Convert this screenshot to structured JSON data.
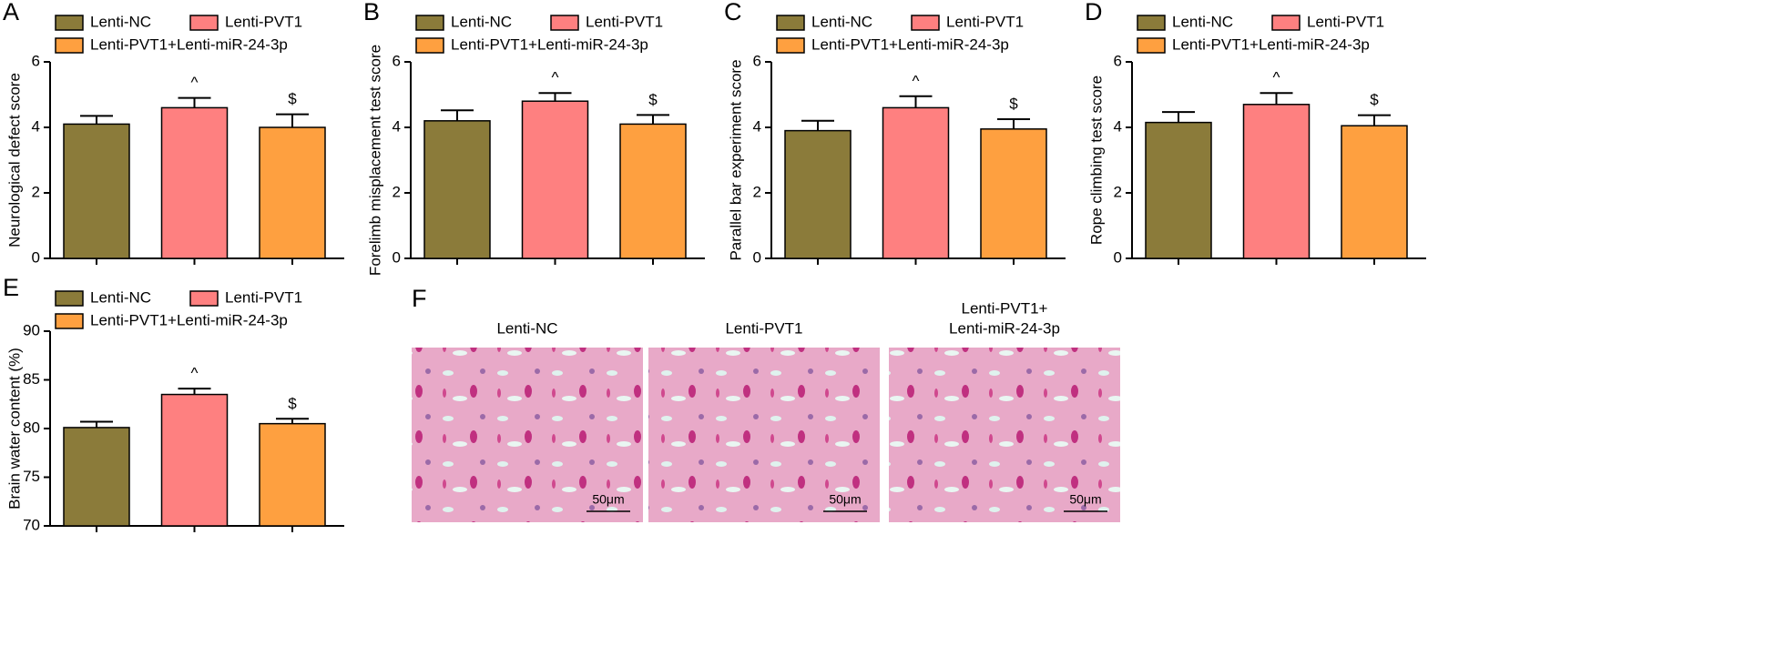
{
  "chart_data": [
    {
      "type": "bar",
      "panel": "A",
      "ylabel": "Neurological defect score",
      "ylim": [
        0,
        6
      ],
      "yticks": [
        0,
        2,
        4,
        6
      ],
      "series": [
        {
          "name": "Lenti-NC",
          "color": "#8b7b3a",
          "values": [
            4.1
          ],
          "errors": [
            0.25
          ]
        },
        {
          "name": "Lenti-PVT1",
          "color": "#fe8080",
          "values": [
            4.6
          ],
          "errors": [
            0.3
          ],
          "label": "^"
        },
        {
          "name": "Lenti-PVT1+Lenti-miR-24-3p",
          "color": "#fea040",
          "values": [
            4.0
          ],
          "errors": [
            0.4
          ],
          "label": "$"
        }
      ]
    },
    {
      "type": "bar",
      "panel": "B",
      "ylabel": "Forelimb misplacement test score",
      "ylim": [
        0,
        6
      ],
      "yticks": [
        0,
        2,
        4,
        6
      ],
      "series": [
        {
          "name": "Lenti-NC",
          "color": "#8b7b3a",
          "values": [
            4.2
          ],
          "errors": [
            0.32
          ]
        },
        {
          "name": "Lenti-PVT1",
          "color": "#fe8080",
          "values": [
            4.8
          ],
          "errors": [
            0.25
          ],
          "label": "^"
        },
        {
          "name": "Lenti-PVT1+Lenti-miR-24-3p",
          "color": "#fea040",
          "values": [
            4.1
          ],
          "errors": [
            0.28
          ],
          "label": "$"
        }
      ]
    },
    {
      "type": "bar",
      "panel": "C",
      "ylabel": "Parallel bar experiment score",
      "ylim": [
        0,
        6
      ],
      "yticks": [
        0,
        2,
        4,
        6
      ],
      "series": [
        {
          "name": "Lenti-NC",
          "color": "#8b7b3a",
          "values": [
            3.9
          ],
          "errors": [
            0.3
          ]
        },
        {
          "name": "Lenti-PVT1",
          "color": "#fe8080",
          "values": [
            4.6
          ],
          "errors": [
            0.35
          ],
          "label": "^"
        },
        {
          "name": "Lenti-PVT1+Lenti-miR-24-3p",
          "color": "#fea040",
          "values": [
            3.95
          ],
          "errors": [
            0.3
          ],
          "label": "$"
        }
      ]
    },
    {
      "type": "bar",
      "panel": "D",
      "ylabel": "Rope climbing test score",
      "ylim": [
        0,
        6
      ],
      "yticks": [
        0,
        2,
        4,
        6
      ],
      "series": [
        {
          "name": "Lenti-NC",
          "color": "#8b7b3a",
          "values": [
            4.15
          ],
          "errors": [
            0.32
          ]
        },
        {
          "name": "Lenti-PVT1",
          "color": "#fe8080",
          "values": [
            4.7
          ],
          "errors": [
            0.35
          ],
          "label": "^"
        },
        {
          "name": "Lenti-PVT1+Lenti-miR-24-3p",
          "color": "#fea040",
          "values": [
            4.05
          ],
          "errors": [
            0.32
          ],
          "label": "$"
        }
      ]
    },
    {
      "type": "bar",
      "panel": "E",
      "ylabel": "Brain water content (%)",
      "ylim": [
        70,
        90
      ],
      "yticks": [
        70,
        75,
        80,
        85,
        90
      ],
      "series": [
        {
          "name": "Lenti-NC",
          "color": "#8b7b3a",
          "values": [
            80.1
          ],
          "errors": [
            0.6
          ]
        },
        {
          "name": "Lenti-PVT1",
          "color": "#fe8080",
          "values": [
            83.5
          ],
          "errors": [
            0.6
          ],
          "label": "^"
        },
        {
          "name": "Lenti-PVT1+Lenti-miR-24-3p",
          "color": "#fea040",
          "values": [
            80.5
          ],
          "errors": [
            0.5
          ],
          "label": "$"
        }
      ]
    }
  ],
  "panel_f": {
    "panel": "F",
    "images": [
      {
        "title": [
          "Lenti-NC"
        ],
        "scale": "50μm"
      },
      {
        "title": [
          "Lenti-PVT1"
        ],
        "scale": "50μm"
      },
      {
        "title": [
          "Lenti-PVT1+",
          "Lenti-miR-24-3p"
        ],
        "scale": "50μm"
      }
    ]
  }
}
